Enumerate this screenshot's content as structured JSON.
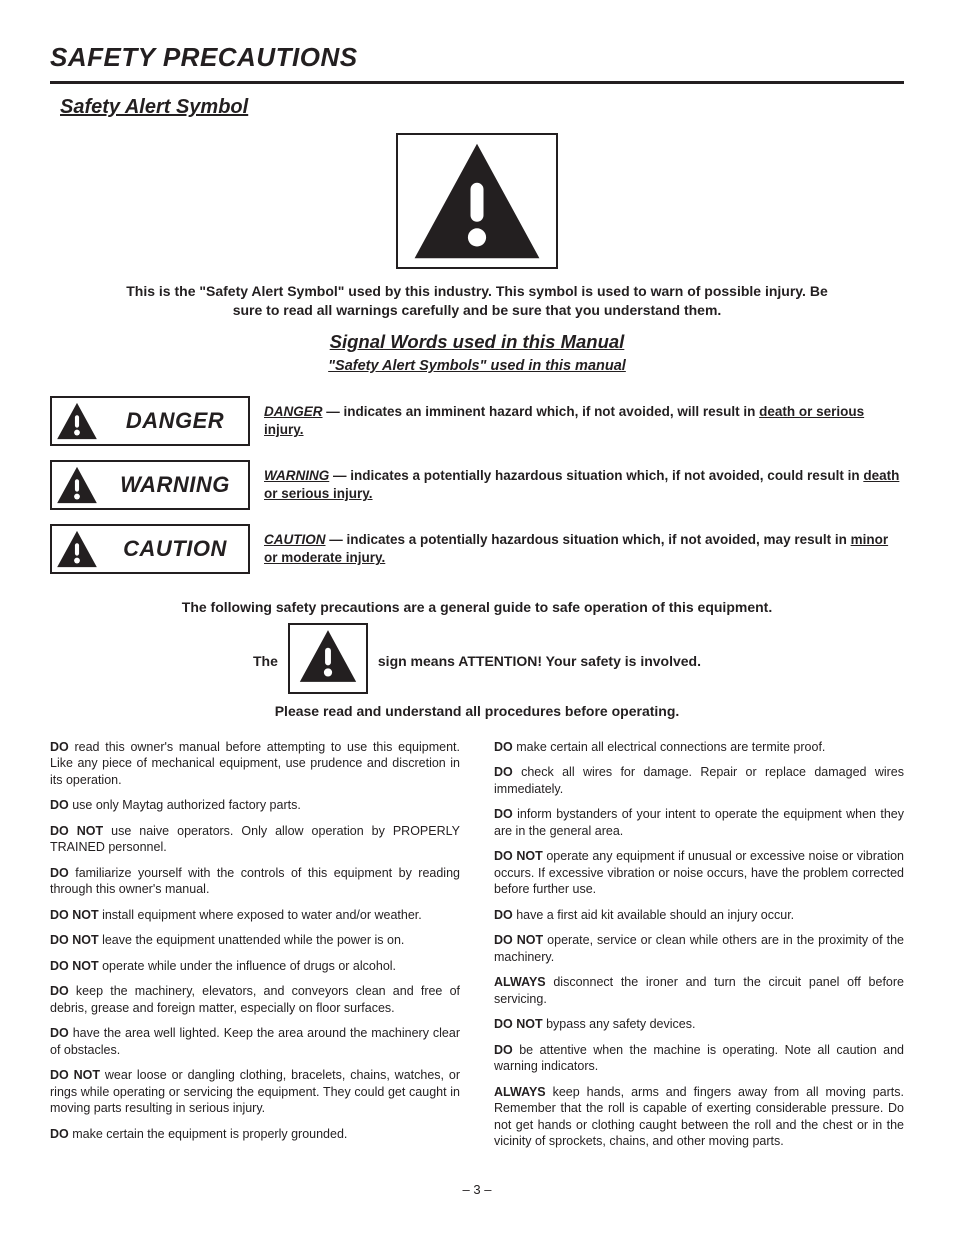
{
  "page": {
    "title": "SAFETY PRECAUTIONS",
    "section_heading": "Safety Alert Symbol",
    "page_number": "– 3 –"
  },
  "alert_symbol": {
    "intro": "This is the \"Safety Alert Symbol\" used by this industry. This symbol is used to warn of possible injury. Be sure to read all warnings carefully and be sure that you understand them."
  },
  "signal_words": {
    "title": "Signal Words used in this Manual",
    "subtitle": "\"Safety Alert Symbols\" used in this manual",
    "rows": [
      {
        "word": "DANGER",
        "lead": "DANGER",
        "body": " — indicates an imminent hazard which, if not avoided, will result in ",
        "tail": "death or serious injury.",
        "tail_underline": true
      },
      {
        "word": "WARNING",
        "lead": "WARNING",
        "body": " — indicates a potentially hazardous situation which, if not avoided, could result in ",
        "tail": "death or serious injury.",
        "tail_underline": true
      },
      {
        "word": "CAUTION",
        "lead": "CAUTION",
        "body": " — indicates a potentially hazardous situation which, if not avoided, may result in ",
        "tail": "minor or moderate injury.",
        "tail_underline": true
      }
    ]
  },
  "hazard": {
    "line1": "The following safety precautions are a general guide to safe operation of this equipment.",
    "line2_a": "The",
    "line2_b": "sign means ATTENTION! Your safety is involved.",
    "line2_c": "Please read and understand all procedures before operating."
  },
  "precautions": [
    {
      "lead": "DO",
      "text": " read this owner's manual before attempting to use this equipment. Like any piece of mechanical equipment, use prudence and discretion in its operation."
    },
    {
      "lead": "DO",
      "text": " use only Maytag authorized factory parts."
    },
    {
      "lead": "DO NOT",
      "text": " use naive operators. Only allow operation by PROPERLY TRAINED personnel."
    },
    {
      "lead": "DO",
      "text": " familiarize yourself with the controls of this equipment by reading through this owner's manual."
    },
    {
      "lead": "DO NOT",
      "text": " install equipment where exposed to water and/or weather."
    },
    {
      "lead": "DO NOT",
      "text": " leave the equipment unattended while the power is on."
    },
    {
      "lead": "DO NOT",
      "text": " operate while under the influence of drugs or alcohol."
    },
    {
      "lead": "DO",
      "text": " keep the machinery, elevators, and conveyors clean and free of debris, grease and foreign matter, especially on floor surfaces."
    },
    {
      "lead": "DO",
      "text": " have the area well lighted. Keep the area around the machinery clear of obstacles."
    },
    {
      "lead": "DO NOT",
      "text": " wear loose or dangling clothing, bracelets, chains, watches, or rings while operating or servicing the equipment. They could get caught in moving parts resulting in serious injury."
    },
    {
      "lead": "DO",
      "text": " make certain the equipment is properly grounded."
    },
    {
      "lead": "DO",
      "text": " make certain all electrical connections are termite proof."
    },
    {
      "lead": "DO",
      "text": " check all wires for damage. Repair or replace damaged wires immediately."
    },
    {
      "lead": "DO",
      "text": " inform bystanders of your intent to operate the equipment when they are in the general area."
    },
    {
      "lead": "DO NOT",
      "text": " operate any equipment if unusual or excessive noise or vibration occurs. If excessive vibration or noise occurs, have the problem corrected before further use."
    },
    {
      "lead": "DO",
      "text": " have a first aid kit available should an injury occur."
    },
    {
      "lead": "DO NOT",
      "text": " operate, service or clean while others are in the proximity of the machinery."
    },
    {
      "lead": "ALWAYS",
      "text": " disconnect the ironer and turn the circuit panel off before servicing."
    },
    {
      "lead": "DO NOT",
      "text": " bypass any safety devices."
    },
    {
      "lead": "DO",
      "text": " be attentive when the machine is operating. Note all caution and warning indicators."
    },
    {
      "lead": "ALWAYS",
      "text": " keep hands, arms and fingers away from all moving parts. Remember that the roll is capable of exerting considerable pressure. Do not get hands or clothing caught between the roll and the chest or in the vicinity of sprockets, chains, and other moving parts."
    }
  ],
  "colors": {
    "text": "#231f20",
    "background": "#ffffff",
    "rule": "#231f20"
  },
  "icons": {
    "triangle_fill": "#231f20"
  }
}
